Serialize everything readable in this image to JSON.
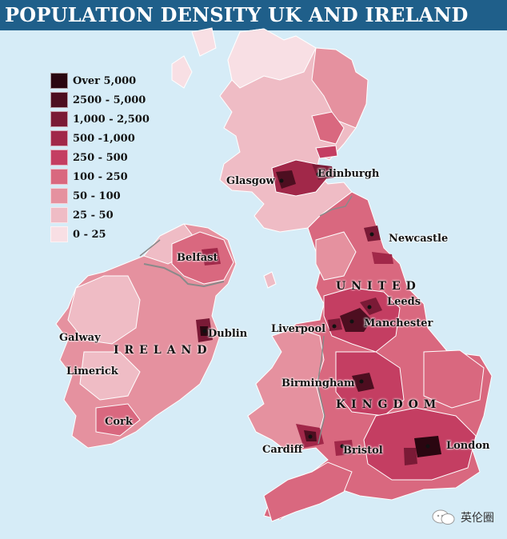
{
  "title": "POPULATION DENSITY UK AND IRELAND",
  "legend": [
    {
      "label": "Over 5,000",
      "color": "#2a0610"
    },
    {
      "label": "2500 - 5,000",
      "color": "#4d0e20"
    },
    {
      "label": "1,000 - 2,500",
      "color": "#7a1a36"
    },
    {
      "label": "500 -1,000",
      "color": "#a12849"
    },
    {
      "label": "250 - 500",
      "color": "#c43e62"
    },
    {
      "label": "100 - 250",
      "color": "#d9687f"
    },
    {
      "label": "50 - 100",
      "color": "#e5919f"
    },
    {
      "label": "25 - 50",
      "color": "#efbcc5"
    },
    {
      "label": "0 - 25",
      "color": "#f8dfe4"
    }
  ],
  "places": {
    "glasgow": "Glasgow",
    "edinburgh": "Edinburgh",
    "newcastle": "Newcastle",
    "belfast": "Belfast",
    "dublin": "Dublin",
    "galway": "Galway",
    "limerick": "Limerick",
    "cork": "Cork",
    "leeds": "Leeds",
    "manchester": "Manchester",
    "liverpool": "Liverpool",
    "birmingham": "Birmingham",
    "cardiff": "Cardiff",
    "bristol": "Bristol",
    "london": "London"
  },
  "countries": {
    "ireland": "IRELAND",
    "united": "UNITED",
    "kingdom": "KINGDOM"
  },
  "watermark": "英伦圈",
  "colors": {
    "sea": "#d6ecf7",
    "title_bar": "#1f5f8a",
    "border": "#8a8a8a"
  }
}
